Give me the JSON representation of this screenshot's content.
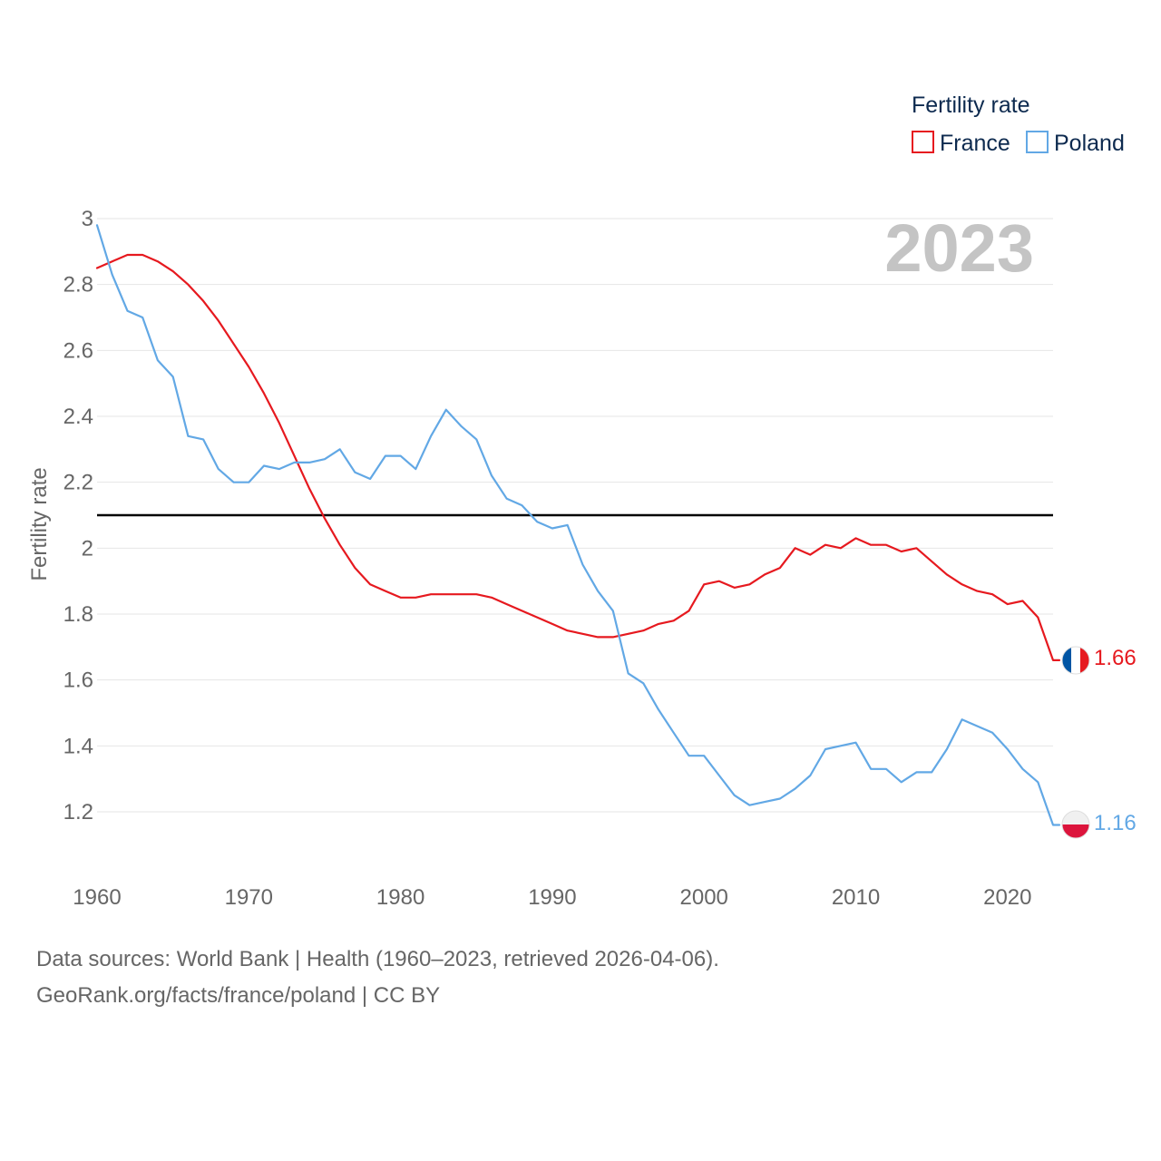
{
  "chart_data": {
    "type": "line",
    "title": "",
    "year_watermark": "2023",
    "legend": {
      "title": "Fertility rate",
      "placement": "top-right"
    },
    "ylabel": "Fertility rate",
    "xlabel": "",
    "xlim": [
      1960,
      2023
    ],
    "ylim": [
      1.05,
      3.0
    ],
    "y_ticks": [
      3,
      2.8,
      2.6,
      2.4,
      2.2,
      2,
      1.8,
      1.6,
      1.4,
      1.2
    ],
    "y_tick_labels": [
      "3",
      "2.8",
      "2.6",
      "2.4",
      "2.2",
      "2",
      "1.8",
      "1.6",
      "1.4",
      "1.2"
    ],
    "x_ticks": [
      1960,
      1970,
      1980,
      1990,
      2000,
      2010,
      2020
    ],
    "x_tick_labels": [
      "1960",
      "1970",
      "1980",
      "1990",
      "2000",
      "2010",
      "2020"
    ],
    "grid": true,
    "reference_line": {
      "value": 2.1,
      "color": "#000000"
    },
    "x": [
      1960,
      1961,
      1962,
      1963,
      1964,
      1965,
      1966,
      1967,
      1968,
      1969,
      1970,
      1971,
      1972,
      1973,
      1974,
      1975,
      1976,
      1977,
      1978,
      1979,
      1980,
      1981,
      1982,
      1983,
      1984,
      1985,
      1986,
      1987,
      1988,
      1989,
      1990,
      1991,
      1992,
      1993,
      1994,
      1995,
      1996,
      1997,
      1998,
      1999,
      2000,
      2001,
      2002,
      2003,
      2004,
      2005,
      2006,
      2007,
      2008,
      2009,
      2010,
      2011,
      2012,
      2013,
      2014,
      2015,
      2016,
      2017,
      2018,
      2019,
      2020,
      2021,
      2022,
      2023
    ],
    "series": [
      {
        "name": "France",
        "color": "#e6191f",
        "end_label": "1.66",
        "values": [
          2.85,
          2.87,
          2.89,
          2.89,
          2.87,
          2.84,
          2.8,
          2.75,
          2.69,
          2.62,
          2.55,
          2.47,
          2.38,
          2.28,
          2.18,
          2.09,
          2.01,
          1.94,
          1.89,
          1.87,
          1.85,
          1.85,
          1.86,
          1.86,
          1.86,
          1.86,
          1.85,
          1.83,
          1.81,
          1.79,
          1.77,
          1.75,
          1.74,
          1.73,
          1.73,
          1.74,
          1.75,
          1.77,
          1.78,
          1.81,
          1.89,
          1.9,
          1.88,
          1.89,
          1.92,
          1.94,
          2.0,
          1.98,
          2.01,
          2.0,
          2.03,
          2.01,
          2.01,
          1.99,
          2.0,
          1.96,
          1.92,
          1.89,
          1.87,
          1.86,
          1.83,
          1.84,
          1.79,
          1.66
        ]
      },
      {
        "name": "Poland",
        "color": "#62a8e5",
        "end_label": "1.16",
        "values": [
          2.98,
          2.83,
          2.72,
          2.7,
          2.57,
          2.52,
          2.34,
          2.33,
          2.24,
          2.2,
          2.2,
          2.25,
          2.24,
          2.26,
          2.26,
          2.27,
          2.3,
          2.23,
          2.21,
          2.28,
          2.28,
          2.24,
          2.34,
          2.42,
          2.37,
          2.33,
          2.22,
          2.15,
          2.13,
          2.08,
          2.06,
          2.07,
          1.95,
          1.87,
          1.81,
          1.62,
          1.59,
          1.51,
          1.44,
          1.37,
          1.37,
          1.31,
          1.25,
          1.22,
          1.23,
          1.24,
          1.27,
          1.31,
          1.39,
          1.4,
          1.41,
          1.33,
          1.33,
          1.29,
          1.32,
          1.32,
          1.39,
          1.48,
          1.46,
          1.44,
          1.39,
          1.33,
          1.29,
          1.16
        ]
      }
    ]
  },
  "sources": {
    "line1": "Data sources: World Bank | Health (1960–2023, retrieved 2026-04-06).",
    "line2": "GeoRank.org/facts/france/poland | CC BY"
  }
}
